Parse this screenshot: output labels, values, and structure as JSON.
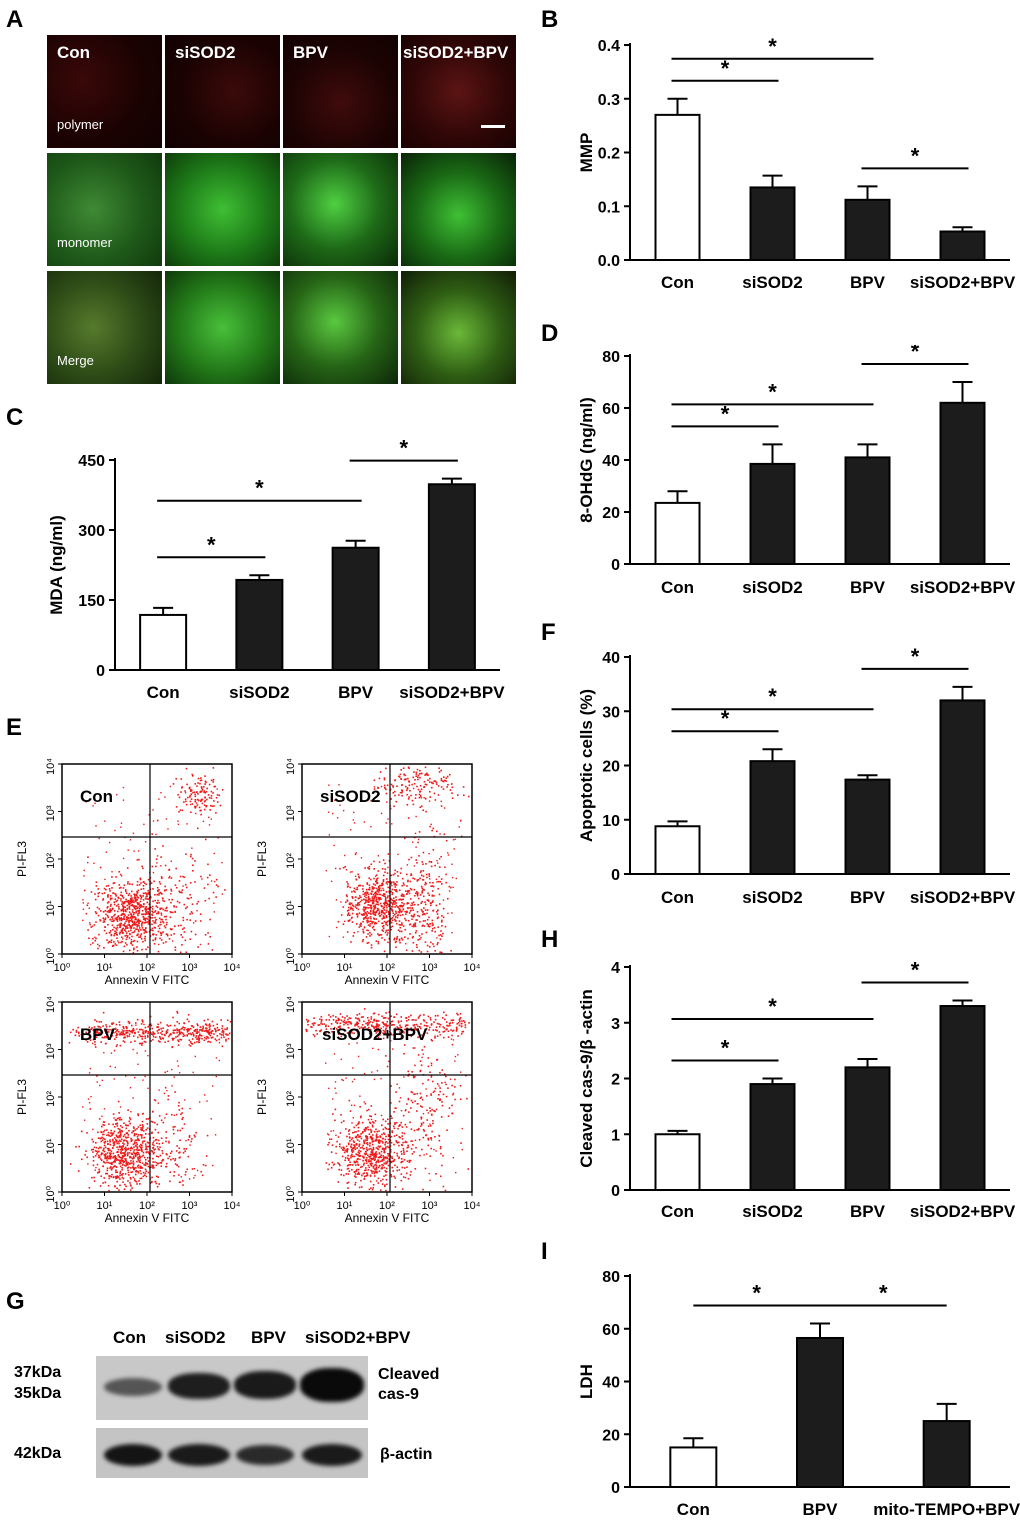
{
  "panel_labels": [
    "A",
    "B",
    "C",
    "D",
    "E",
    "F",
    "G",
    "H",
    "I"
  ],
  "microscopy": {
    "columns": [
      "Con",
      "siSOD2",
      "BPV",
      "siSOD2+BPV"
    ],
    "rows": [
      "polymer",
      "monomer",
      "Merge"
    ]
  },
  "flow": {
    "panels": [
      "Con",
      "siSOD2",
      "BPV",
      "siSOD2+BPV"
    ],
    "xlabel": "Annexin V FITC",
    "ylabel": "PI-FL3",
    "tick_labels": [
      "10⁰",
      "10¹",
      "10²",
      "10³",
      "10⁴"
    ]
  },
  "blot": {
    "lanes": [
      "Con",
      "siSOD2",
      "BPV",
      "siSOD2+BPV"
    ],
    "left_labels": [
      "37kDa",
      "35kDa",
      "42kDa"
    ],
    "right_labels": [
      "Cleaved",
      "cas-9",
      "β-actin"
    ]
  },
  "chart_data": [
    {
      "id": "B",
      "type": "bar",
      "categories": [
        "Con",
        "siSOD2",
        "BPV",
        "siSOD2+BPV"
      ],
      "values": [
        0.27,
        0.135,
        0.112,
        0.053
      ],
      "errors": [
        0.03,
        0.022,
        0.025,
        0.008
      ],
      "fills": [
        "#ffffff",
        "#1c1c1c",
        "#1c1c1c",
        "#1c1c1c"
      ],
      "ylabel": "MMP",
      "ylim": [
        0,
        0.4
      ],
      "yticks": [
        0.0,
        0.1,
        0.2,
        0.3,
        0.4
      ],
      "ytick_labels": [
        "0.0",
        "0.1",
        "0.2",
        "0.3",
        "0.4"
      ],
      "significance": [
        [
          0,
          1
        ],
        [
          0,
          2
        ],
        [
          2,
          3
        ]
      ],
      "sig_label": "*"
    },
    {
      "id": "C",
      "type": "bar",
      "categories": [
        "Con",
        "siSOD2",
        "BPV",
        "siSOD2+BPV"
      ],
      "values": [
        118,
        193,
        262,
        398
      ],
      "errors": [
        15,
        10,
        15,
        12
      ],
      "fills": [
        "#ffffff",
        "#1c1c1c",
        "#1c1c1c",
        "#1c1c1c"
      ],
      "ylabel": "MDA  (ng/ml)",
      "ylim": [
        0,
        450
      ],
      "yticks": [
        0,
        150,
        300,
        450
      ],
      "ytick_labels": [
        "0",
        "150",
        "300",
        "450"
      ],
      "significance": [
        [
          0,
          1
        ],
        [
          0,
          2
        ],
        [
          2,
          3
        ]
      ],
      "sig_label": "*"
    },
    {
      "id": "D",
      "type": "bar",
      "categories": [
        "Con",
        "siSOD2",
        "BPV",
        "siSOD2+BPV"
      ],
      "values": [
        23.5,
        38.5,
        41,
        62
      ],
      "errors": [
        4.5,
        7.5,
        5,
        8
      ],
      "fills": [
        "#ffffff",
        "#1c1c1c",
        "#1c1c1c",
        "#1c1c1c"
      ],
      "ylabel": "8-OHdG (ng/ml)",
      "ylim": [
        0,
        80
      ],
      "yticks": [
        0,
        20,
        40,
        60,
        80
      ],
      "ytick_labels": [
        "0",
        "20",
        "40",
        "60",
        "80"
      ],
      "significance": [
        [
          0,
          1
        ],
        [
          0,
          2
        ],
        [
          2,
          3
        ]
      ],
      "sig_label": "*"
    },
    {
      "id": "F",
      "type": "bar",
      "categories": [
        "Con",
        "siSOD2",
        "BPV",
        "siSOD2+BPV"
      ],
      "values": [
        8.8,
        20.8,
        17.4,
        32
      ],
      "errors": [
        0.9,
        2.2,
        0.8,
        2.5
      ],
      "fills": [
        "#ffffff",
        "#1c1c1c",
        "#1c1c1c",
        "#1c1c1c"
      ],
      "ylabel": "Apoptotic cells (%)",
      "ylim": [
        0,
        40
      ],
      "yticks": [
        0,
        10,
        20,
        30,
        40
      ],
      "ytick_labels": [
        "0",
        "10",
        "20",
        "30",
        "40"
      ],
      "significance": [
        [
          0,
          1
        ],
        [
          0,
          2
        ],
        [
          2,
          3
        ]
      ],
      "sig_label": "*"
    },
    {
      "id": "H",
      "type": "bar",
      "categories": [
        "Con",
        "siSOD2",
        "BPV",
        "siSOD2+BPV"
      ],
      "values": [
        1.0,
        1.9,
        2.2,
        3.3
      ],
      "errors": [
        0.06,
        0.1,
        0.15,
        0.1
      ],
      "fills": [
        "#ffffff",
        "#1c1c1c",
        "#1c1c1c",
        "#1c1c1c"
      ],
      "ylabel": "Cleaved cas-9/β -actin",
      "ylim": [
        0,
        4
      ],
      "yticks": [
        0,
        1,
        2,
        3,
        4
      ],
      "ytick_labels": [
        "0",
        "1",
        "2",
        "3",
        "4"
      ],
      "significance": [
        [
          0,
          1
        ],
        [
          0,
          2
        ],
        [
          2,
          3
        ]
      ],
      "sig_label": "*"
    },
    {
      "id": "I",
      "type": "bar",
      "categories": [
        "Con",
        "BPV",
        "mito-TEMPO+BPV"
      ],
      "values": [
        15,
        56.5,
        25
      ],
      "errors": [
        3.5,
        5.5,
        6.5
      ],
      "fills": [
        "#ffffff",
        "#1c1c1c",
        "#1c1c1c"
      ],
      "ylabel": "LDH",
      "ylim": [
        0,
        80
      ],
      "yticks": [
        0,
        20,
        40,
        60,
        80
      ],
      "ytick_labels": [
        "0",
        "20",
        "40",
        "60",
        "80"
      ],
      "significance": [
        [
          0,
          1
        ],
        [
          1,
          2
        ]
      ],
      "sig_label": "*"
    }
  ]
}
